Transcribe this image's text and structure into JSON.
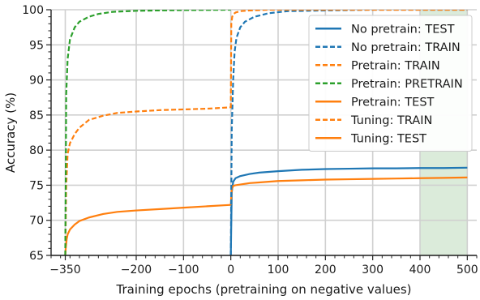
{
  "chart_data": {
    "type": "line",
    "title": "",
    "xlabel": "Training epochs (pretraining on negative values)",
    "ylabel": "Accuracy (%)",
    "xlim": [
      -380,
      520
    ],
    "ylim": [
      65,
      100
    ],
    "x_ticks": [
      -350,
      -200,
      -100,
      0,
      100,
      200,
      300,
      400,
      500
    ],
    "x_tick_labels": [
      "−350",
      "−200",
      "−100",
      "0",
      "100",
      "200",
      "300",
      "400",
      "500"
    ],
    "y_ticks": [
      65,
      70,
      75,
      80,
      85,
      90,
      95,
      100
    ],
    "y_tick_labels": [
      "65",
      "70",
      "75",
      "80",
      "85",
      "90",
      "95",
      "100"
    ],
    "grid": true,
    "legend_position": "top-right",
    "highlight_span": {
      "x_start": 400,
      "x_end": 500,
      "color": "#d5e8d4"
    },
    "colors": {
      "blue": "#1f77b4",
      "orange": "#ff7f0e",
      "green": "#2ca02c"
    },
    "series": [
      {
        "name": "No pretrain: TEST",
        "color": "#1f77b4",
        "style": "solid",
        "x": [
          0,
          2,
          5,
          10,
          20,
          40,
          60,
          80,
          100,
          150,
          200,
          250,
          300,
          350,
          400,
          450,
          500
        ],
        "y": [
          65,
          74.0,
          75.5,
          76.0,
          76.3,
          76.6,
          76.8,
          76.9,
          77.0,
          77.2,
          77.3,
          77.35,
          77.4,
          77.4,
          77.45,
          77.45,
          77.5
        ]
      },
      {
        "name": "No pretrain: TRAIN",
        "color": "#1f77b4",
        "style": "dashed",
        "x": [
          0,
          2,
          5,
          8,
          12,
          20,
          30,
          50,
          80,
          120,
          200,
          300,
          400,
          500
        ],
        "y": [
          65,
          83,
          90,
          94,
          96,
          97.5,
          98.3,
          99,
          99.5,
          99.8,
          99.9,
          100,
          100,
          100
        ]
      },
      {
        "name": "Pretrain: TRAIN",
        "color": "#ff7f0e",
        "style": "dashed",
        "x": [
          -350,
          -348,
          -345,
          -340,
          -330,
          -320,
          -300,
          -270,
          -240,
          -200,
          -150,
          -100,
          -50,
          0
        ],
        "y": [
          65,
          75,
          79.5,
          81,
          82.3,
          83.2,
          84.3,
          84.9,
          85.3,
          85.5,
          85.7,
          85.8,
          85.9,
          86.1
        ]
      },
      {
        "name": "Pretrain: PRETRAIN",
        "color": "#2ca02c",
        "style": "dashed",
        "x": [
          -350,
          -348,
          -345,
          -340,
          -330,
          -320,
          -300,
          -280,
          -250,
          -200,
          -150,
          -100,
          -50,
          0
        ],
        "y": [
          65,
          88,
          93,
          95.8,
          97.5,
          98.3,
          99.0,
          99.4,
          99.7,
          99.85,
          99.9,
          99.95,
          99.97,
          100
        ]
      },
      {
        "name": "Pretrain: TEST",
        "color": "#ff7f0e",
        "style": "solid",
        "x": [
          -350,
          -349,
          -347,
          -345,
          -340,
          -330,
          -320,
          -300,
          -270,
          -240,
          -200,
          -150,
          -100,
          -50,
          0
        ],
        "y": [
          65,
          66.0,
          67.3,
          68.0,
          68.7,
          69.4,
          69.9,
          70.4,
          70.9,
          71.2,
          71.4,
          71.6,
          71.8,
          72.0,
          72.2
        ]
      },
      {
        "name": "Tuning: TRAIN",
        "color": "#ff7f0e",
        "style": "dashed",
        "x": [
          0,
          1,
          3,
          6,
          10,
          20,
          40,
          80,
          150,
          300,
          500
        ],
        "y": [
          86.0,
          98.0,
          99.0,
          99.4,
          99.6,
          99.8,
          99.9,
          100,
          100,
          100,
          100
        ]
      },
      {
        "name": "Tuning: TEST",
        "color": "#ff7f0e",
        "style": "solid",
        "x": [
          0,
          2,
          5,
          10,
          20,
          40,
          60,
          80,
          100,
          150,
          200,
          250,
          300,
          350,
          400,
          450,
          500
        ],
        "y": [
          72.2,
          74.4,
          74.9,
          75.0,
          75.1,
          75.3,
          75.4,
          75.5,
          75.6,
          75.7,
          75.8,
          75.85,
          75.9,
          75.95,
          76.0,
          76.05,
          76.1
        ]
      }
    ]
  }
}
